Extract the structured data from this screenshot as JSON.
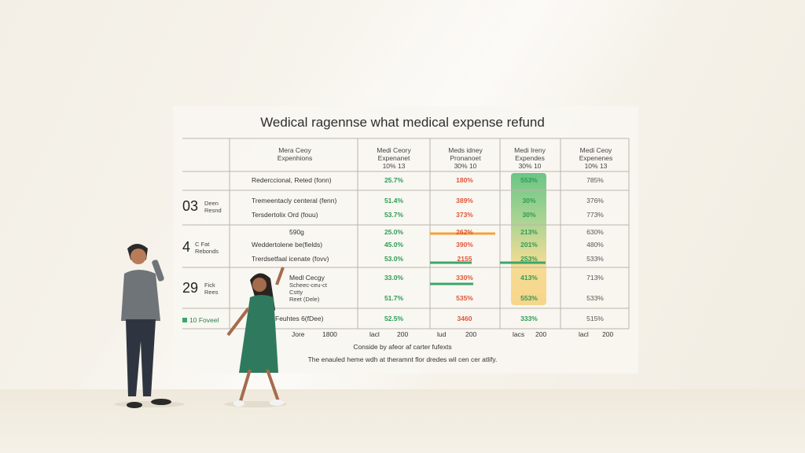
{
  "title": "Wedical ragennse what medical expense refund",
  "columns": [
    {
      "line1": "Mera Ceoy",
      "line2": "Expenhions",
      "line3": ""
    },
    {
      "line1": "Medi Ceory",
      "line2": "Expenanet",
      "line3": "10% 13"
    },
    {
      "line1": "Meds idney",
      "line2": "Pronanoet",
      "line3": "30% 10"
    },
    {
      "line1": "Medi Ireny",
      "line2": "Expendes",
      "line3": "30% 10"
    },
    {
      "line1": "Medi Ceoy",
      "line2": "Expenenes",
      "line3": "10% 13"
    }
  ],
  "groups": [
    {
      "num": "03",
      "l1": "Deen",
      "l2": "Resnd"
    },
    {
      "num": "4",
      "l1": "C Fat",
      "l2": "Rebonds"
    },
    {
      "num": "29",
      "l1": "Fick",
      "l2": "Rees"
    }
  ],
  "rows": [
    {
      "label": "Rederccional, Reted (fonn)",
      "v": [
        "25.7%",
        "180%",
        "553%",
        "785%"
      ]
    },
    {
      "label": "Tremeentacly centeral (fenn)",
      "v": [
        "51.4%",
        "389%",
        "30%",
        "376%"
      ]
    },
    {
      "label": "Tersdertolix Ord (fouu)",
      "v": [
        "53.7%",
        "373%",
        "30%",
        "773%"
      ]
    },
    {
      "label": "590g",
      "v": [
        "25.0%",
        "262%",
        "213%",
        "630%"
      ]
    },
    {
      "label": "Weddertolene be(fields)",
      "v": [
        "45.0%",
        "390%",
        "201%",
        "480%"
      ]
    },
    {
      "label": "Trerdsetfaal icenate (fovv)",
      "v": [
        "53.0%",
        "2155",
        "253%",
        "533%"
      ]
    },
    {
      "label": "Medl Cecgy",
      "v": [
        "33.0%",
        "330%",
        "413%",
        "713%"
      ]
    },
    {
      "label": "",
      "v": [
        "51.7%",
        "535%",
        "553%",
        "533%"
      ]
    },
    {
      "label": "Feuhtes 6(fDee)",
      "v": [
        "52.5%",
        "3460",
        "333%",
        "515%"
      ]
    }
  ],
  "group3_extra": [
    "Scheec-ceu-ct",
    "Cstty",
    "Reet (Dele)"
  ],
  "legend": "10 Foveel",
  "axis": [
    "Jore",
    "1800",
    "lacl",
    "200",
    "lud",
    "200",
    "lacs",
    "200",
    "lacl",
    "200"
  ],
  "note1": "Conside by afeor af carter fufexts",
  "note2": "The enauled heme wdh at theramnt flor dredes wil cen cer atlify.",
  "colors": {
    "green": "#2e9b55",
    "red": "#e0563b",
    "orange": "#f2a33a",
    "teal": "#3aa76a"
  }
}
